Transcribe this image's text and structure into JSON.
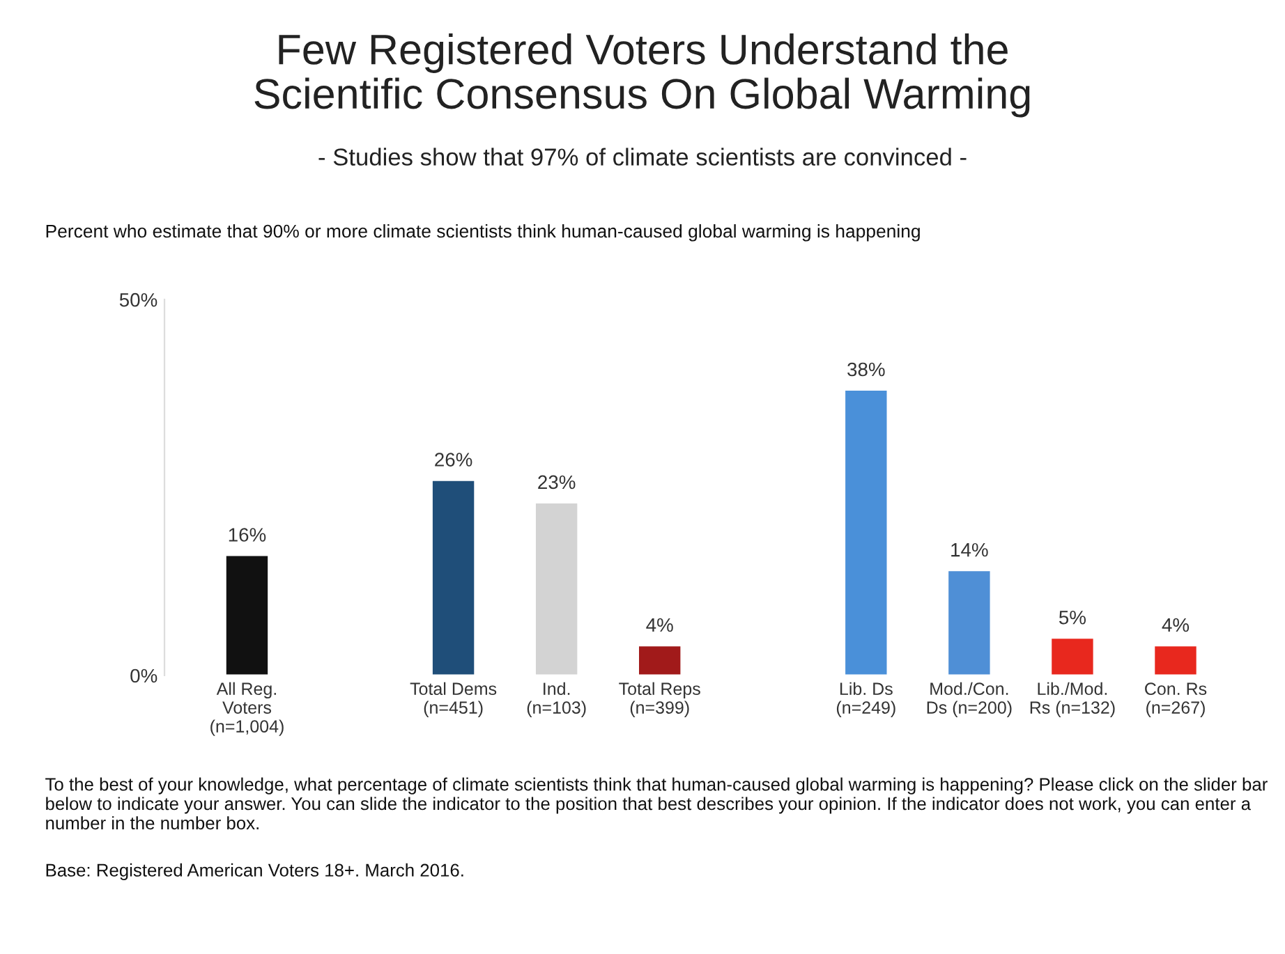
{
  "chart_data": {
    "type": "bar",
    "title": "Few Registered Voters Understand the\nScientific Consensus On Global Warming",
    "subtitle": "- Studies show that 97% of climate scientists are convinced -",
    "categories": [
      "All Reg.\nVoters\n(n=1,004)",
      null,
      "Total Dems\n(n=451)",
      "Ind.\n(n=103)",
      "Total Reps\n(n=399)",
      null,
      "Lib. Ds\n(n=249)",
      "Mod./Con.\nDs (n=200)",
      "Lib./Mod.\nRs (n=132)",
      "Con. Rs\n(n=267)"
    ],
    "values": [
      16,
      null,
      26,
      23,
      4,
      null,
      38,
      14,
      5,
      4
    ],
    "value_labels": [
      "16%",
      null,
      "26%",
      "23%",
      "4%",
      null,
      "38%",
      "14%",
      "5%",
      "4%"
    ],
    "colors": [
      "#111111",
      "#ffffff",
      "#1f4e79",
      "#d3d3d3",
      "#a11a1a",
      "#ffffff",
      "#4a90d9",
      "#4f8fd6",
      "#e8281e",
      "#e8281e"
    ],
    "ylim": [
      0,
      50
    ],
    "yticks": [
      {
        "value": 0,
        "label": "0%"
      },
      {
        "value": 50,
        "label": "50%"
      }
    ],
    "grid": false,
    "annotations": [
      "Percent who estimate that 90% or more climate scientists think human-caused global warming is happening",
      "To the best of your knowledge, what percentage of climate scientists think that human-caused global warming is happening? Please click on the slider bar below to indicate your answer. You can slide the indicator to the position that best describes your opinion. If the indicator does not work, you can enter a number in the number box.",
      "Base: Registered American Voters 18+. March 2016."
    ]
  }
}
